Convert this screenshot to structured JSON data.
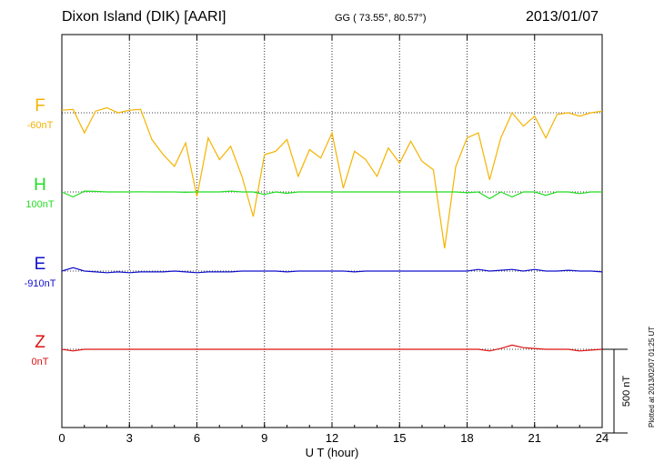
{
  "header": {
    "station": "Dixon Island (DIK)  [AARI]",
    "coords": "GG ( 73.55°,  80.57°)",
    "date": "2013/01/07"
  },
  "footer": {
    "plotted": "Plotted at 2013/02/07 01:25 UT"
  },
  "colors": {
    "F": "#f5b300",
    "H": "#22dd22",
    "E": "#1010cc",
    "Z": "#dd1111"
  },
  "chart_data": {
    "type": "line",
    "title": "",
    "xlabel": "U T (hour)",
    "ylabel": "",
    "xlim": [
      0,
      24
    ],
    "x_ticks": [
      "0",
      "3",
      "6",
      "9",
      "12",
      "15",
      "18",
      "21",
      "24"
    ],
    "y_units": "nT",
    "scale_bar_label": "500 nT",
    "scale_bar_nT": 500,
    "grid": "vertical dotted lines every 3 hours",
    "x": [
      0.0,
      0.5,
      1.0,
      1.5,
      2.0,
      2.5,
      3.0,
      3.5,
      4.0,
      4.5,
      5.0,
      5.5,
      6.0,
      6.5,
      7.0,
      7.5,
      8.0,
      8.5,
      9.0,
      9.5,
      10.0,
      10.5,
      11.0,
      11.5,
      12.0,
      12.5,
      13.0,
      13.5,
      14.0,
      14.5,
      15.0,
      15.5,
      16.0,
      16.5,
      17.0,
      17.5,
      18.0,
      18.5,
      19.0,
      19.5,
      20.0,
      20.5,
      21.0,
      21.5,
      22.0,
      22.5,
      23.0,
      23.5,
      24.0
    ],
    "series": [
      {
        "name": "F",
        "label": "F",
        "baseline_label": "-60nT",
        "values": [
          15,
          20,
          -120,
          10,
          30,
          0,
          15,
          20,
          -160,
          -250,
          -320,
          -180,
          -500,
          -150,
          -280,
          -200,
          -380,
          -620,
          -250,
          -230,
          -160,
          -380,
          -220,
          -270,
          -120,
          -450,
          -230,
          -280,
          -380,
          -210,
          -300,
          -170,
          -290,
          -340,
          -810,
          -320,
          -150,
          -120,
          -400,
          -150,
          0,
          -80,
          -20,
          -150,
          -10,
          0,
          -20,
          0,
          10
        ]
      },
      {
        "name": "H",
        "label": "H",
        "baseline_label": "100nT",
        "values": [
          0,
          -30,
          5,
          3,
          0,
          0,
          0,
          1,
          0,
          0,
          0,
          -2,
          0,
          0,
          0,
          5,
          0,
          0,
          -15,
          0,
          -8,
          0,
          0,
          0,
          0,
          0,
          0,
          0,
          0,
          0,
          0,
          0,
          0,
          0,
          0,
          0,
          -5,
          0,
          -40,
          0,
          -30,
          0,
          0,
          -20,
          0,
          0,
          -10,
          0,
          0
        ]
      },
      {
        "name": "E",
        "label": "E",
        "baseline_label": "-910nT",
        "values": [
          0,
          20,
          0,
          -5,
          -10,
          -5,
          -10,
          -5,
          -5,
          -5,
          0,
          -5,
          -10,
          -5,
          -5,
          -5,
          0,
          0,
          0,
          0,
          -5,
          0,
          0,
          0,
          0,
          0,
          -5,
          0,
          0,
          0,
          0,
          0,
          0,
          0,
          0,
          0,
          0,
          10,
          0,
          5,
          10,
          0,
          10,
          0,
          0,
          5,
          0,
          0,
          -5
        ]
      },
      {
        "name": "Z",
        "label": "Z",
        "baseline_label": "0nT",
        "values": [
          0,
          -10,
          0,
          0,
          0,
          0,
          0,
          0,
          0,
          0,
          0,
          0,
          0,
          0,
          0,
          0,
          0,
          0,
          0,
          0,
          0,
          0,
          0,
          0,
          0,
          0,
          0,
          0,
          0,
          0,
          0,
          0,
          0,
          0,
          0,
          0,
          0,
          0,
          -10,
          5,
          25,
          10,
          5,
          0,
          0,
          0,
          -10,
          -5,
          0
        ]
      }
    ]
  }
}
